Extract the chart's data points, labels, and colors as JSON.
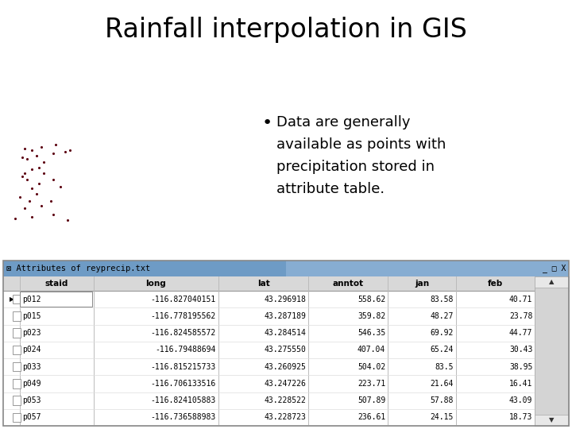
{
  "title": "Rainfall interpolation in GIS",
  "title_fontsize": 24,
  "background_color": "#ffffff",
  "bullet_text_lines": [
    "Data are generally",
    "available as points with",
    "precipitation stored in",
    "attribute table."
  ],
  "bullet_fontsize": 13,
  "point_color": "#5c0010",
  "points_x": [
    0.03,
    0.1,
    0.19,
    0.25,
    0.07,
    0.14,
    0.09,
    0.05,
    0.12,
    0.18,
    0.1,
    0.13,
    0.08,
    0.06,
    0.07,
    0.1,
    0.13,
    0.15,
    0.19,
    0.22,
    0.15,
    0.08,
    0.06,
    0.12,
    0.19,
    0.24,
    0.07,
    0.1,
    0.14,
    0.2,
    0.26
  ],
  "points_y": [
    0.84,
    0.83,
    0.82,
    0.85,
    0.78,
    0.77,
    0.74,
    0.72,
    0.7,
    0.74,
    0.67,
    0.64,
    0.62,
    0.6,
    0.58,
    0.56,
    0.55,
    0.58,
    0.62,
    0.66,
    0.52,
    0.5,
    0.49,
    0.48,
    0.47,
    0.46,
    0.44,
    0.45,
    0.43,
    0.42,
    0.45
  ],
  "table_title": "Attributes of reyprecip.txt",
  "table_columns": [
    "staid",
    "long",
    "lat",
    "anntot",
    "jan",
    "feb"
  ],
  "table_rows": [
    [
      "p012",
      "-116.827040151",
      "43.296918",
      "558.62",
      "83.58",
      "40.71"
    ],
    [
      "p015",
      "-116.778195562",
      "43.287189",
      "359.82",
      "48.27",
      "23.78"
    ],
    [
      "p023",
      "-116.824585572",
      "43.284514",
      "546.35",
      "69.92",
      "44.77"
    ],
    [
      "p024",
      "-116.79488694",
      "43.275550",
      "407.04",
      "65.24",
      "30.43"
    ],
    [
      "p033",
      "-116.815215733",
      "43.260925",
      "504.02",
      "83.5",
      "38.95"
    ],
    [
      "p049",
      "-116.706133516",
      "43.247226",
      "223.71",
      "21.64",
      "16.41"
    ],
    [
      "p053",
      "-116.824105883",
      "43.228522",
      "507.89",
      "57.88",
      "43.09"
    ],
    [
      "p057",
      "-116.736588983",
      "43.228723",
      "236.61",
      "24.15",
      "18.73"
    ]
  ]
}
